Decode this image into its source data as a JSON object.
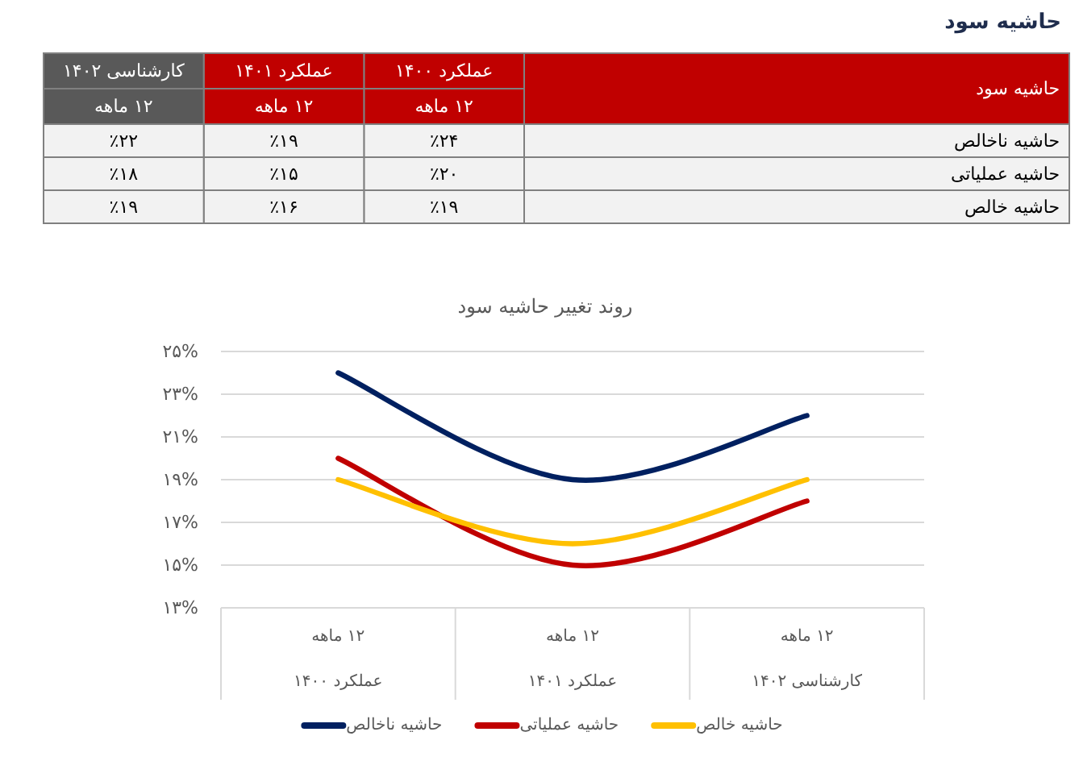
{
  "chart_data": {
    "type": "line",
    "title": "روند تغییر حاشیه سود",
    "annotations": [
      "حاشیه سود",
      "حاشیه سود",
      "عملکرد ۱۴۰۰",
      "۱۲ ماهه",
      "عملکرد ۱۴۰۱",
      "۱۲ ماهه",
      "کارشناسی ۱۴۰۲",
      "۱۲ ماهه",
      "٪۲۴",
      "٪۱۹",
      "٪۲۲",
      "٪۲۰",
      "٪۱۵",
      "٪۱۸",
      "٪۱۹",
      "٪۱۶",
      "٪۱۹"
    ],
    "categories": [
      "۱۲ ماهه\nعملکرد ۱۴۰۰",
      "۱۲ ماهه\nعملکرد ۱۴۰۱",
      "۱۲ ماهه\nکارشناسی ۱۴۰۲"
    ],
    "series": [
      {
        "name": "حاشیه ناخالص",
        "color": "#002060",
        "values": [
          24,
          19,
          22
        ]
      },
      {
        "name": "حاشیه عملیاتی",
        "color": "#c00000",
        "values": [
          20,
          15,
          18
        ]
      },
      {
        "name": "حاشیه خالص",
        "color": "#ffc000",
        "values": [
          19,
          16,
          19
        ]
      }
    ],
    "ylim": [
      13,
      25
    ],
    "yticks": [
      {
        "value": 13,
        "label": "۱۳%"
      },
      {
        "value": 15,
        "label": "۱۵%"
      },
      {
        "value": 17,
        "label": "۱۷%"
      },
      {
        "value": 19,
        "label": "۱۹%"
      },
      {
        "value": 21,
        "label": "۲۱%"
      },
      {
        "value": 23,
        "label": "۲۳%"
      },
      {
        "value": 25,
        "label": "۲۵%"
      }
    ],
    "grid": "y",
    "legend": "bottom",
    "marker": "none",
    "line_style": "solid"
  }
}
